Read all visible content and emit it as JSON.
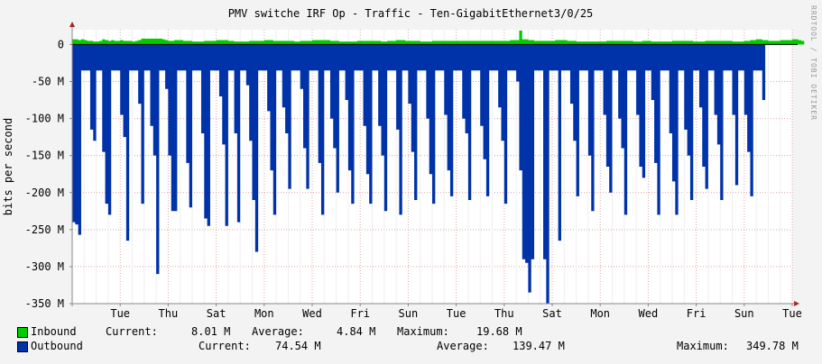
{
  "chart_data": {
    "type": "area",
    "title": "PMV switche IRF Op - Traffic - Ten-GigabitEthernet3/0/25",
    "ylabel": "bits per second",
    "ylim": [
      -350000000,
      20000000
    ],
    "yticks": [
      {
        "value": 0,
        "label": "0"
      },
      {
        "value": -50000000,
        "label": "-50 M"
      },
      {
        "value": -100000000,
        "label": "-100 M"
      },
      {
        "value": -150000000,
        "label": "-150 M"
      },
      {
        "value": -200000000,
        "label": "-200 M"
      },
      {
        "value": -250000000,
        "label": "-250 M"
      },
      {
        "value": -300000000,
        "label": "-300 M"
      },
      {
        "value": -350000000,
        "label": "-350 M"
      }
    ],
    "xlim": [
      0,
      15
    ],
    "xticks": [
      {
        "value": 1,
        "label": "Tue"
      },
      {
        "value": 2,
        "label": "Thu"
      },
      {
        "value": 3,
        "label": "Sat"
      },
      {
        "value": 4,
        "label": "Mon"
      },
      {
        "value": 5,
        "label": "Wed"
      },
      {
        "value": 6,
        "label": "Fri"
      },
      {
        "value": 7,
        "label": "Sun"
      },
      {
        "value": 8,
        "label": "Tue"
      },
      {
        "value": 9,
        "label": "Thu"
      },
      {
        "value": 10,
        "label": "Sat"
      },
      {
        "value": 11,
        "label": "Mon"
      },
      {
        "value": 12,
        "label": "Wed"
      },
      {
        "value": 13,
        "label": "Fri"
      },
      {
        "value": 14,
        "label": "Sun"
      },
      {
        "value": 15,
        "label": "Tue"
      }
    ],
    "grid": true,
    "series": [
      {
        "name": "Inbound",
        "color": "#00cc00"
      },
      {
        "name": "Outbound",
        "color": "#0033aa"
      }
    ],
    "x_step": 0.0625,
    "outbound_mbps": [
      240,
      243,
      257,
      35,
      35,
      35,
      115,
      130,
      35,
      35,
      145,
      215,
      230,
      35,
      35,
      35,
      95,
      125,
      265,
      35,
      35,
      35,
      80,
      215,
      35,
      35,
      110,
      150,
      310,
      35,
      35,
      60,
      150,
      225,
      225,
      35,
      35,
      35,
      160,
      220,
      35,
      35,
      35,
      120,
      235,
      245,
      35,
      35,
      35,
      70,
      135,
      245,
      35,
      35,
      120,
      240,
      35,
      35,
      55,
      130,
      210,
      280,
      35,
      35,
      35,
      90,
      170,
      230,
      35,
      35,
      85,
      120,
      195,
      35,
      35,
      35,
      60,
      140,
      195,
      35,
      35,
      35,
      160,
      230,
      35,
      35,
      100,
      140,
      200,
      35,
      35,
      75,
      170,
      215,
      35,
      35,
      35,
      110,
      175,
      215,
      35,
      35,
      110,
      150,
      225,
      35,
      35,
      35,
      115,
      230,
      35,
      35,
      80,
      145,
      210,
      35,
      35,
      35,
      100,
      175,
      215,
      35,
      35,
      35,
      95,
      170,
      205,
      35,
      35,
      35,
      100,
      120,
      210,
      35,
      35,
      35,
      110,
      155,
      205,
      35,
      35,
      35,
      85,
      130,
      215,
      35,
      35,
      35,
      50,
      170,
      290,
      295,
      335,
      290,
      35,
      35,
      35,
      290,
      350,
      35,
      35,
      35,
      265,
      35,
      35,
      35,
      80,
      130,
      205,
      35,
      35,
      35,
      150,
      225,
      35,
      35,
      35,
      95,
      165,
      200,
      35,
      35,
      100,
      140,
      230,
      35,
      35,
      35,
      95,
      165,
      180,
      35,
      35,
      75,
      160,
      230,
      35,
      35,
      35,
      120,
      185,
      230,
      35,
      35,
      115,
      150,
      210,
      35,
      35,
      85,
      165,
      195,
      35,
      35,
      95,
      135,
      210,
      35,
      35,
      35,
      95,
      190,
      35,
      35,
      95,
      145,
      205,
      35,
      35,
      35,
      75
    ],
    "inbound_mbps": [
      7,
      7,
      6,
      7,
      6,
      5,
      5,
      4,
      4,
      5,
      7,
      6,
      5,
      6,
      5,
      5,
      6,
      5,
      5,
      5,
      4,
      5,
      6,
      8,
      8,
      8,
      8,
      8,
      8,
      8,
      7,
      6,
      5,
      5,
      6,
      6,
      6,
      5,
      5,
      5,
      4,
      4,
      4,
      4,
      5,
      5,
      5,
      5,
      6,
      6,
      6,
      6,
      5,
      5,
      4,
      4,
      4,
      4,
      4,
      5,
      5,
      5,
      5,
      5,
      6,
      6,
      6,
      5,
      5,
      5,
      5,
      5,
      5,
      5,
      4,
      4,
      5,
      5,
      5,
      5,
      6,
      6,
      6,
      6,
      6,
      6,
      5,
      5,
      5,
      4,
      4,
      4,
      4,
      4,
      4,
      5,
      5,
      5,
      5,
      5,
      5,
      5,
      5,
      4,
      4,
      5,
      5,
      5,
      6,
      6,
      6,
      5,
      5,
      5,
      5,
      5,
      4,
      4,
      4,
      4,
      5,
      5,
      5,
      5,
      5,
      5,
      5,
      5,
      5,
      5,
      5,
      5,
      5,
      5,
      5,
      5,
      5,
      5,
      5,
      5,
      5,
      5,
      5,
      5,
      5,
      5,
      6,
      6,
      6,
      19,
      7,
      7,
      6,
      6,
      5,
      5,
      5,
      5,
      5,
      5,
      5,
      6,
      6,
      6,
      6,
      5,
      5,
      5,
      4,
      4,
      4,
      4,
      4,
      4,
      4,
      4,
      4,
      4,
      5,
      5,
      5,
      5,
      5,
      5,
      5,
      5,
      5,
      4,
      4,
      4,
      5,
      5,
      5,
      4,
      4,
      4,
      4,
      4,
      4,
      4,
      5,
      5,
      5,
      5,
      5,
      5,
      5,
      4,
      4,
      4,
      4,
      5,
      5,
      5,
      5,
      5,
      5,
      5,
      5,
      5,
      4,
      4,
      4,
      4,
      5,
      5,
      6,
      6,
      7,
      7,
      6,
      6,
      5,
      5,
      5,
      5,
      6,
      6,
      6,
      6,
      7,
      7,
      6,
      5
    ]
  },
  "legend": {
    "inbound": {
      "label": "Inbound",
      "current_label": "Current:",
      "current": "8.01 M",
      "average_label": "Average:",
      "average": "4.84 M",
      "maximum_label": "Maximum:",
      "maximum": "19.68 M"
    },
    "outbound": {
      "label": "Outbound",
      "current_label": "Current:",
      "current": "74.54 M",
      "average_label": "Average:",
      "average": "139.47 M",
      "maximum_label": "Maximum:",
      "maximum": "349.78 M"
    }
  },
  "watermark": "RRDTOOL / TOBI OETIKER"
}
